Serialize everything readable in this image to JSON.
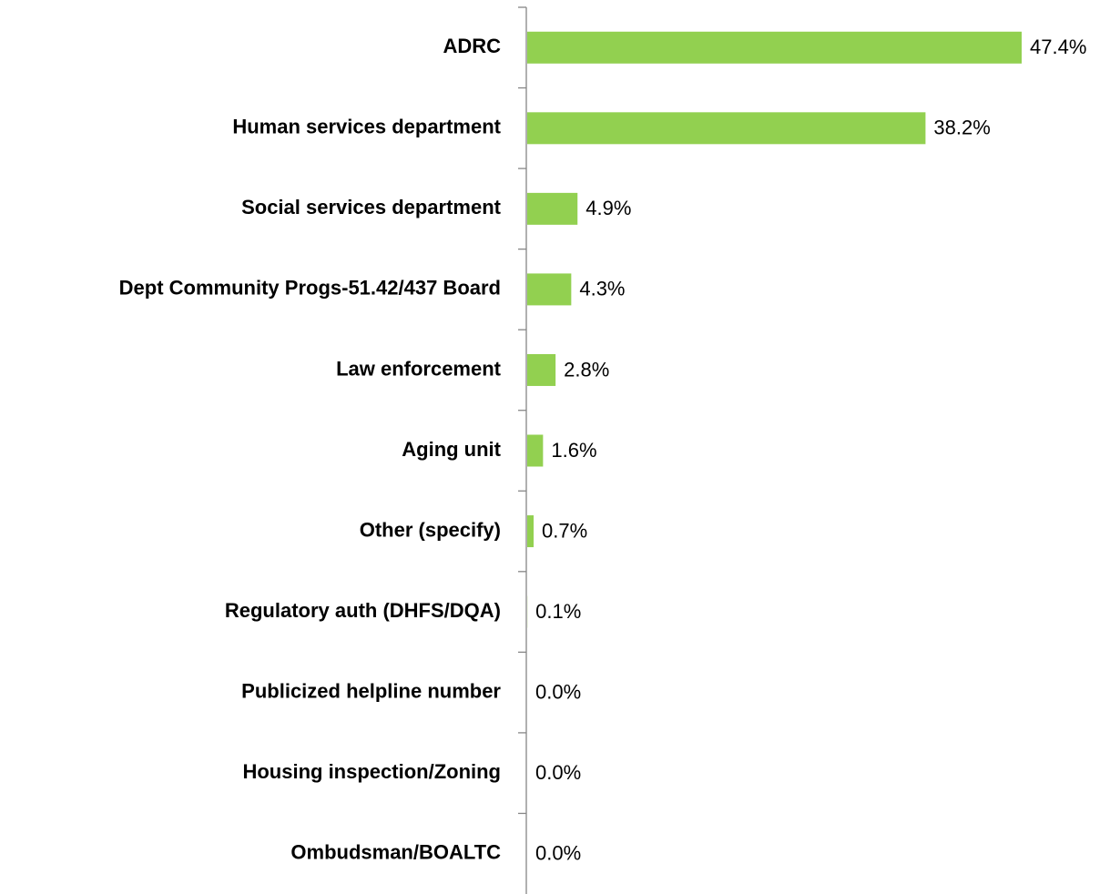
{
  "chart_data": {
    "type": "hbar",
    "categories": [
      "ADRC",
      "Human services department",
      "Social services department",
      "Dept Community Progs-51.42/437 Board",
      "Law enforcement",
      "Aging unit",
      "Other (specify)",
      "Regulatory auth (DHFS/DQA)",
      "Publicized helpline number",
      "Housing inspection/Zoning",
      "Ombudsman/BOALTC"
    ],
    "values": [
      47.4,
      38.2,
      4.9,
      4.3,
      2.8,
      1.6,
      0.7,
      0.1,
      0.0,
      0.0,
      0.0
    ],
    "value_labels": [
      "47.4%",
      "38.2%",
      "4.9%",
      "4.3%",
      "2.8%",
      "1.6%",
      "0.7%",
      "0.1%",
      "0.0%",
      "0.0%",
      "0.0%"
    ],
    "color": "#92d050"
  }
}
